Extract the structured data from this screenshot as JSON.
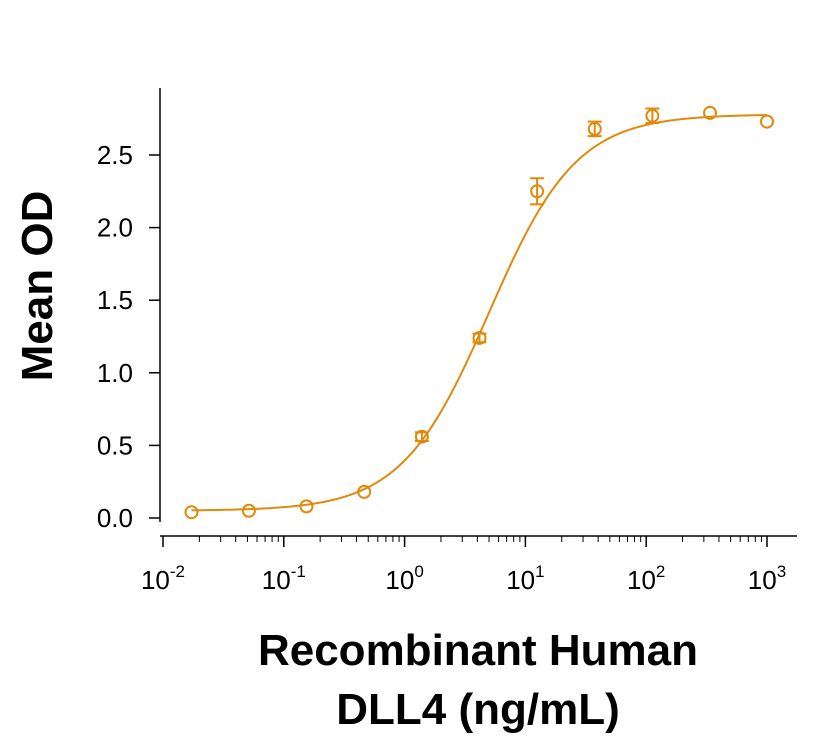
{
  "chart_data": {
    "type": "scatter",
    "xscale": "log",
    "xlabel": [
      "Recombinant Human",
      "DLL4 (ng/mL)"
    ],
    "ylabel": "Mean OD",
    "xlim": [
      0.01,
      1000
    ],
    "ylim": [
      0.0,
      2.85
    ],
    "xticks": [
      {
        "value": 0.01,
        "base": "10",
        "exp": "-2"
      },
      {
        "value": 0.1,
        "base": "10",
        "exp": "-1"
      },
      {
        "value": 1,
        "base": "10",
        "exp": "0"
      },
      {
        "value": 10,
        "base": "10",
        "exp": "1"
      },
      {
        "value": 100,
        "base": "10",
        "exp": "2"
      },
      {
        "value": 1000,
        "base": "10",
        "exp": "3"
      }
    ],
    "yticks": [
      "0.0",
      "0.5",
      "1.0",
      "1.5",
      "2.0",
      "2.5"
    ],
    "grid": false,
    "color": "#e08a0b",
    "series": [
      {
        "x": [
          0.0172,
          0.0514,
          0.154,
          0.463,
          1.39,
          4.17,
          12.5,
          37.5,
          112.5,
          337.5,
          1000
        ],
        "y": [
          0.04,
          0.05,
          0.08,
          0.18,
          0.56,
          1.24,
          2.25,
          2.68,
          2.77,
          2.79,
          2.73
        ],
        "err": [
          0.01,
          0.01,
          0.01,
          0.02,
          0.03,
          0.03,
          0.09,
          0.05,
          0.05,
          0.02,
          0.01
        ]
      }
    ],
    "fit": {
      "bottom": 0.05,
      "top": 2.78,
      "ec50": 5.0,
      "hill": 1.2
    }
  }
}
